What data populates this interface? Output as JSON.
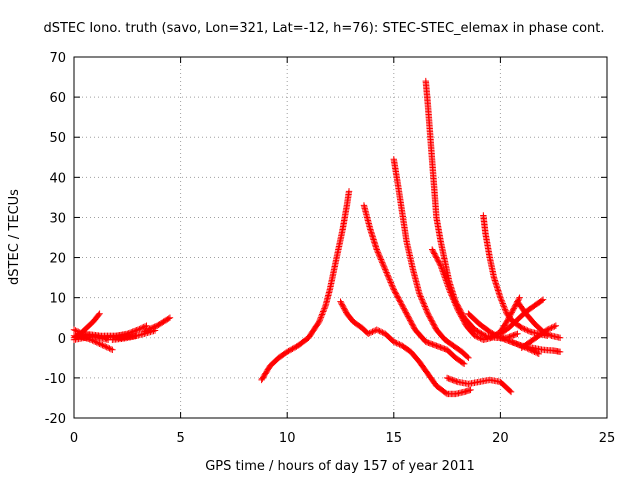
{
  "chart_data": {
    "type": "scatter",
    "title": "dSTEC Iono. truth (savo, Lon=321, Lat=-12, h=76): STEC-STEC_elemax in phase cont.",
    "xlabel": "GPS time / hours of day 157 of year 2011",
    "ylabel": "dSTEC  / TECUs",
    "xlim": [
      0,
      25
    ],
    "ylim": [
      -20,
      70
    ],
    "x_ticks": [
      0,
      5,
      10,
      15,
      20,
      25
    ],
    "y_ticks": [
      -20,
      -10,
      0,
      10,
      20,
      30,
      40,
      50,
      60,
      70
    ],
    "x_tick_labels": [
      "0",
      "5",
      "10",
      "15",
      "20",
      "25"
    ],
    "y_tick_labels": [
      "-20",
      "-10",
      "0",
      "10",
      "20",
      "30",
      "40",
      "50",
      "60",
      "70"
    ],
    "grid": true,
    "marker": "plus",
    "color": "#ff0000",
    "series": [
      {
        "x": [
          0.0,
          0.3,
          0.6,
          0.9,
          1.2
        ],
        "y": [
          0.0,
          1.0,
          2.5,
          4.0,
          6.0
        ]
      },
      {
        "x": [
          0.0,
          0.4,
          0.8,
          1.2,
          1.6
        ],
        "y": [
          2.0,
          1.0,
          0.5,
          0.0,
          -0.5
        ]
      },
      {
        "x": [
          0.0,
          0.4,
          0.8,
          1.2,
          1.8
        ],
        "y": [
          0.5,
          0.2,
          -0.5,
          -1.5,
          -3.0
        ]
      },
      {
        "x": [
          0.0,
          0.5,
          1.0,
          1.5,
          2.0,
          2.5
        ],
        "y": [
          -0.5,
          0.0,
          0.3,
          0.5,
          0.5,
          0.8
        ]
      },
      {
        "x": [
          0.2,
          0.8,
          1.5,
          2.2,
          2.9
        ],
        "y": [
          1.0,
          0.8,
          0.3,
          0.0,
          0.5
        ]
      },
      {
        "x": [
          1.5,
          2.0,
          2.5,
          3.0,
          3.4
        ],
        "y": [
          0.0,
          0.5,
          1.0,
          2.0,
          3.0
        ]
      },
      {
        "x": [
          1.8,
          2.3,
          2.8,
          3.3,
          3.8
        ],
        "y": [
          -0.5,
          -0.2,
          0.3,
          1.0,
          1.8
        ]
      },
      {
        "x": [
          3.3,
          3.6,
          3.9,
          4.2,
          4.5
        ],
        "y": [
          1.5,
          2.3,
          3.0,
          4.0,
          5.0
        ]
      },
      {
        "x": [
          8.8,
          9.2,
          9.6,
          10.0,
          10.5,
          11.0,
          11.5,
          11.8,
          12.0,
          12.2,
          12.4,
          12.6,
          12.8,
          12.9
        ],
        "y": [
          -10.5,
          -7.0,
          -5.0,
          -3.5,
          -2.0,
          0.0,
          4.0,
          8.0,
          12.0,
          17.0,
          22.0,
          27.0,
          33.0,
          36.5
        ]
      },
      {
        "x": [
          12.5,
          12.8,
          13.1,
          13.5,
          13.8,
          14.2,
          14.6,
          15.0,
          15.4,
          15.8,
          16.2,
          16.6,
          17.0,
          17.5,
          17.9,
          18.3,
          18.6
        ],
        "y": [
          9.0,
          6.0,
          4.0,
          2.5,
          1.0,
          2.0,
          1.0,
          -1.0,
          -2.0,
          -3.5,
          -6.0,
          -9.0,
          -12.0,
          -14.0,
          -14.0,
          -13.5,
          -13.0
        ]
      },
      {
        "x": [
          13.6,
          13.9,
          14.2,
          14.6,
          15.0,
          15.5,
          16.0,
          16.5,
          17.0,
          17.5,
          17.9,
          18.3
        ],
        "y": [
          33.0,
          27.0,
          22.0,
          17.0,
          12.0,
          7.0,
          2.0,
          -1.0,
          -2.0,
          -3.0,
          -5.0,
          -6.5
        ]
      },
      {
        "x": [
          15.0,
          15.2,
          15.4,
          15.6,
          15.9,
          16.2,
          16.6,
          17.0,
          17.4,
          17.8,
          18.2,
          18.5
        ],
        "y": [
          44.5,
          38.0,
          31.0,
          24.0,
          17.0,
          11.0,
          6.0,
          2.0,
          -0.5,
          -2.0,
          -3.5,
          -5.0
        ]
      },
      {
        "x": [
          16.5,
          16.6,
          16.7,
          16.8,
          16.9,
          17.0,
          17.2,
          17.4,
          17.6,
          17.9,
          18.3,
          18.8,
          19.3,
          19.8,
          20.3,
          20.8
        ],
        "y": [
          64.0,
          58.0,
          51.0,
          44.0,
          37.0,
          30.0,
          24.0,
          19.0,
          14.0,
          9.0,
          5.0,
          2.0,
          0.5,
          0.0,
          0.0,
          1.0
        ]
      },
      {
        "x": [
          16.8,
          17.2,
          17.6,
          18.0,
          18.4,
          18.8,
          19.2,
          19.6,
          20.0,
          20.3,
          20.6,
          20.9
        ],
        "y": [
          22.0,
          18.0,
          12.0,
          7.0,
          3.0,
          0.5,
          -0.5,
          0.0,
          1.5,
          4.0,
          7.0,
          10.0
        ]
      },
      {
        "x": [
          17.5,
          18.0,
          18.5,
          19.0,
          19.5,
          20.0,
          20.5
        ],
        "y": [
          -10.0,
          -11.0,
          -11.5,
          -11.0,
          -10.5,
          -11.0,
          -13.5
        ]
      },
      {
        "x": [
          19.2,
          19.3,
          19.5,
          19.7,
          20.0,
          20.3,
          20.6,
          21.0,
          21.4,
          21.8,
          22.2
        ],
        "y": [
          30.5,
          26.0,
          20.0,
          15.0,
          10.0,
          6.0,
          4.0,
          2.5,
          1.5,
          1.0,
          0.5
        ]
      },
      {
        "x": [
          18.5,
          19.0,
          19.5,
          20.0,
          20.5,
          21.0,
          21.4,
          21.8
        ],
        "y": [
          6.0,
          3.5,
          1.5,
          0.0,
          -1.0,
          -2.0,
          -3.0,
          -4.0
        ]
      },
      {
        "x": [
          20.8,
          21.2,
          21.6,
          22.0,
          22.4,
          22.8
        ],
        "y": [
          9.0,
          6.0,
          3.5,
          1.5,
          0.5,
          0.0
        ]
      },
      {
        "x": [
          20.0,
          20.4,
          20.8,
          21.2,
          21.6,
          22.0
        ],
        "y": [
          1.0,
          2.5,
          4.5,
          6.5,
          8.0,
          9.5
        ]
      },
      {
        "x": [
          20.5,
          21.0,
          21.5,
          22.0,
          22.5,
          22.8
        ],
        "y": [
          -1.0,
          -2.0,
          -2.5,
          -3.0,
          -3.2,
          -3.5
        ]
      },
      {
        "x": [
          21.0,
          21.4,
          21.8,
          22.2,
          22.6
        ],
        "y": [
          -2.5,
          -1.0,
          0.5,
          2.0,
          3.0
        ]
      }
    ]
  }
}
